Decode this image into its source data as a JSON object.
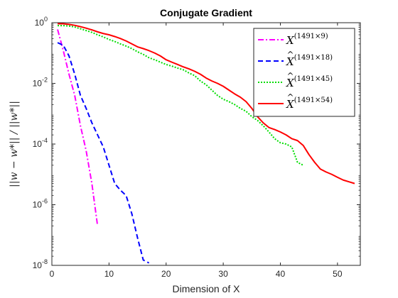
{
  "chart_data": {
    "type": "line",
    "title": "Conjugate Gradient",
    "xlabel": "Dimension of X",
    "ylabel": "||w − w*|| / ||w*||",
    "xlim": [
      0,
      54
    ],
    "ylim": [
      1e-08,
      1
    ],
    "yscale": "log",
    "x_ticks": [
      0,
      10,
      20,
      30,
      40,
      50
    ],
    "x_tick_labels": [
      "0",
      "10",
      "20",
      "30",
      "40",
      "50"
    ],
    "y_ticks": [
      1e-08,
      1e-06,
      0.0001,
      0.01,
      1
    ],
    "y_tick_labels": [
      {
        "base": "10",
        "exp": "-8"
      },
      {
        "base": "10",
        "exp": "-6"
      },
      {
        "base": "10",
        "exp": "-4"
      },
      {
        "base": "10",
        "exp": "-2"
      },
      {
        "base": "10",
        "exp": "0"
      }
    ],
    "grid": false,
    "legend_position": "top-right",
    "series": [
      {
        "name": "X^(1491×9)",
        "legend_base": "X",
        "legend_hat": false,
        "legend_sup": "(1491×9)",
        "color": "#ff00ff",
        "dash": "8,3,2,3",
        "x": [
          1,
          2,
          3,
          4,
          5,
          6,
          7,
          8
        ],
        "y": [
          0.6,
          0.12,
          0.02,
          0.004,
          0.0004,
          6e-05,
          5e-06,
          2e-07
        ]
      },
      {
        "name": "X̂^(1491×18)",
        "legend_base": "X",
        "legend_hat": true,
        "legend_sup": "(1491×18)",
        "color": "#0000ff",
        "dash": "7,4",
        "x": [
          1,
          2,
          3,
          4,
          5,
          6,
          7,
          8,
          9,
          10,
          11,
          12,
          13,
          14,
          15,
          16,
          17
        ],
        "y": [
          0.22,
          0.18,
          0.08,
          0.02,
          0.004,
          0.0015,
          0.0005,
          0.0002,
          8e-05,
          2e-05,
          5e-06,
          3e-06,
          2e-06,
          5e-07,
          8e-08,
          1.5e-08,
          1.2e-08
        ]
      },
      {
        "name": "X̂^(1491×45)",
        "legend_base": "X",
        "legend_hat": true,
        "legend_sup": "(1491×45)",
        "color": "#00dd00",
        "dash": "2,2",
        "x": [
          1,
          2,
          3,
          4,
          5,
          6,
          7,
          8,
          9,
          10,
          11,
          12,
          13,
          14,
          15,
          16,
          17,
          18,
          19,
          20,
          21,
          22,
          23,
          24,
          25,
          26,
          27,
          28,
          29,
          30,
          31,
          32,
          33,
          34,
          35,
          36,
          37,
          38,
          39,
          40,
          41,
          42,
          43,
          44
        ],
        "y": [
          0.8,
          0.8,
          0.78,
          0.72,
          0.63,
          0.55,
          0.48,
          0.4,
          0.34,
          0.28,
          0.24,
          0.2,
          0.17,
          0.14,
          0.11,
          0.09,
          0.07,
          0.06,
          0.05,
          0.042,
          0.037,
          0.032,
          0.028,
          0.022,
          0.018,
          0.012,
          0.009,
          0.006,
          0.004,
          0.003,
          0.0025,
          0.002,
          0.0015,
          0.0012,
          0.0008,
          0.0006,
          0.0004,
          0.00025,
          0.00015,
          0.00011,
          0.0001,
          8e-05,
          2.5e-05,
          2e-05
        ]
      },
      {
        "name": "X̂^(1491×54)",
        "legend_base": "X",
        "legend_hat": true,
        "legend_sup": "(1491×54)",
        "color": "#ff0000",
        "dash": "",
        "x": [
          1,
          2,
          3,
          4,
          5,
          6,
          7,
          8,
          9,
          10,
          11,
          12,
          13,
          14,
          15,
          16,
          17,
          18,
          19,
          20,
          21,
          22,
          23,
          24,
          25,
          26,
          27,
          28,
          29,
          30,
          31,
          32,
          33,
          34,
          35,
          36,
          37,
          38,
          39,
          40,
          41,
          42,
          43,
          44,
          45,
          46,
          47,
          48,
          49,
          50,
          51,
          52,
          53
        ],
        "y": [
          0.92,
          0.92,
          0.88,
          0.82,
          0.74,
          0.66,
          0.58,
          0.5,
          0.44,
          0.4,
          0.35,
          0.3,
          0.25,
          0.2,
          0.16,
          0.14,
          0.12,
          0.1,
          0.08,
          0.06,
          0.05,
          0.042,
          0.035,
          0.03,
          0.025,
          0.02,
          0.015,
          0.012,
          0.01,
          0.008,
          0.006,
          0.0045,
          0.0035,
          0.0025,
          0.0015,
          0.0008,
          0.0005,
          0.00035,
          0.0003,
          0.00025,
          0.0002,
          0.00015,
          0.00013,
          9e-05,
          4.5e-05,
          2.5e-05,
          1.5e-05,
          1.2e-05,
          1e-05,
          8e-06,
          6.5e-06,
          5.7e-06,
          5e-06
        ]
      }
    ]
  }
}
